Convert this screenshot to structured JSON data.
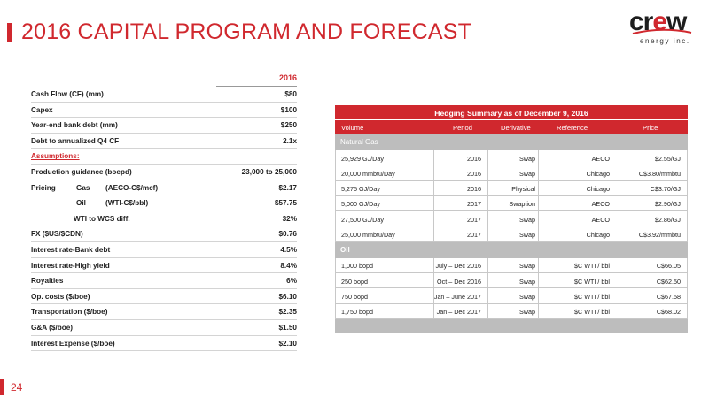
{
  "title": "2016 CAPITAL PROGRAM AND FORECAST",
  "logo": {
    "word_a": "cr",
    "word_e": "e",
    "word_b": "w",
    "tagline": "energy inc."
  },
  "assumptions": {
    "year": "2016",
    "rows": [
      {
        "label": "Cash Flow (CF) (mm)",
        "value": "$80"
      },
      {
        "label": "Capex",
        "value": "$100"
      },
      {
        "label": "Year-end bank debt (mm)",
        "value": "$250"
      },
      {
        "label": "Debt to annualized Q4 CF",
        "value": "2.1x"
      },
      {
        "label": "Assumptions:",
        "value": ""
      },
      {
        "label": "Production guidance (boepd)",
        "value": "23,000 to 25,000"
      },
      {
        "label": "Pricing",
        "sub1": "Gas",
        "sub2": "(AECO-C$/mcf)",
        "value": "$2.17"
      },
      {
        "label": "",
        "sub1": "Oil",
        "sub2": "(WTI-C$/bbl)",
        "value": "$57.75"
      },
      {
        "label": "",
        "indent": "WTI to WCS diff.",
        "value": "32%"
      },
      {
        "label": "FX ($US/$CDN)",
        "value": "$0.76"
      },
      {
        "label": "Interest rate-Bank debt",
        "value": "4.5%"
      },
      {
        "label": "Interest rate-High yield",
        "value": "8.4%"
      },
      {
        "label": "Royalties",
        "value": "6%"
      },
      {
        "label": "Op. costs ($/boe)",
        "value": "$6.10"
      },
      {
        "label": "Transportation ($/boe)",
        "value": "$2.35"
      },
      {
        "label": "G&A ($/boe)",
        "value": "$1.50"
      },
      {
        "label": "Interest Expense  ($/boe)",
        "value": "$2.10"
      }
    ]
  },
  "hedging": {
    "title": "Hedging Summary as of December 9, 2016",
    "columns": [
      "Volume",
      "Period",
      "Derivative",
      "Reference",
      "Price"
    ],
    "gas_label": "Natural Gas",
    "gas_rows": [
      [
        "25,929 GJ/Day",
        "2016",
        "Swap",
        "AECO",
        "$2.55/GJ"
      ],
      [
        "20,000 mmbtu/Day",
        "2016",
        "Swap",
        "Chicago",
        "C$3.80/mmbtu"
      ],
      [
        "5,275 GJ/Day",
        "2016",
        "Physical",
        "Chicago",
        "C$3.70/GJ"
      ],
      [
        "5,000 GJ/Day",
        "2017",
        "Swaption",
        "AECO",
        "$2.90/GJ"
      ],
      [
        "27,500 GJ/Day",
        "2017",
        "Swap",
        "AECO",
        "$2.86/GJ"
      ],
      [
        "25,000 mmbtu/Day",
        "2017",
        "Swap",
        "Chicago",
        "C$3.92/mmbtu"
      ]
    ],
    "oil_label": "Oil",
    "oil_rows": [
      [
        "1,000 bopd",
        "July – Dec 2016",
        "Swap",
        "$C WTI / bbl",
        "C$66.05"
      ],
      [
        "250 bopd",
        "Oct – Dec 2016",
        "Swap",
        "$C WTI / bbl",
        "C$62.50"
      ],
      [
        "750 bopd",
        "Jan – June 2017",
        "Swap",
        "$C WTI / bbl",
        "C$67.58"
      ],
      [
        "1,750 bopd",
        "Jan – Dec 2017",
        "Swap",
        "$C WTI / bbl",
        "C$68.02"
      ]
    ]
  },
  "page_number": "24"
}
